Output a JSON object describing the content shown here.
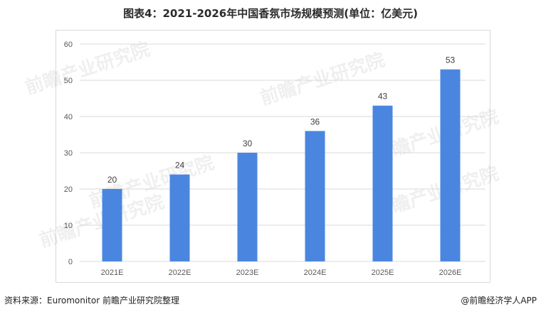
{
  "header": {
    "title": "图表4：2021-2026年中国香氛市场规模预测(单位：亿美元)"
  },
  "footer": {
    "source": "资料来源：Euromonitor 前瞻产业研究院整理",
    "credit": "@前瞻经济学人APP"
  },
  "watermarks": [
    "前瞻产业研究院",
    "前瞻产业研究院",
    "前瞻产业研究院",
    "前瞻产业研究院",
    "前瞻产业研究院",
    "前瞻产业研究院"
  ],
  "colors": {
    "bar": "#4a86e0",
    "grid": "#d9d9d9",
    "axis_text": "#595959"
  },
  "chart_data": {
    "type": "bar",
    "title": "图表4：2021-2026年中国香氛市场规模预测(单位：亿美元)",
    "categories": [
      "2021E",
      "2022E",
      "2023E",
      "2024E",
      "2025E",
      "2026E"
    ],
    "values": [
      20,
      24,
      30,
      36,
      43,
      53
    ],
    "data_labels": [
      "20",
      "24",
      "30",
      "36",
      "43",
      "53"
    ],
    "y_ticks": [
      "0",
      "10",
      "20",
      "30",
      "40",
      "50",
      "60"
    ],
    "ylim": [
      0,
      60
    ],
    "xlabel": "",
    "ylabel": "",
    "grid": true,
    "legend": "none"
  }
}
